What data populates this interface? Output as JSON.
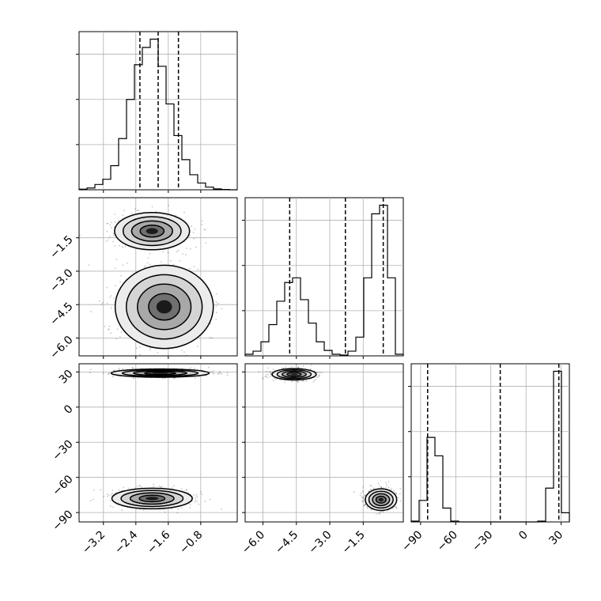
{
  "chart_data": {
    "type": "corner",
    "grid": true,
    "parameters": [
      {
        "index": 0,
        "range": [
          -3.8,
          0.1
        ],
        "ticks": [
          -3.2,
          -2.4,
          -1.6,
          -0.8
        ],
        "tick_labels": [
          "−3.2",
          "−2.4",
          "−1.6",
          "−0.8"
        ],
        "quantiles": [
          -2.3,
          -1.85,
          -1.35
        ],
        "histogram": {
          "edges": [
            -3.8,
            -3.605,
            -3.41,
            -3.215,
            -3.02,
            -2.825,
            -2.63,
            -2.435,
            -2.24,
            -2.045,
            -1.85,
            -1.655,
            -1.46,
            -1.265,
            -1.07,
            -0.875,
            -0.68,
            -0.485,
            -0.29,
            -0.095,
            0.1
          ],
          "counts": [
            0.004,
            0.012,
            0.035,
            0.07,
            0.16,
            0.34,
            0.6,
            0.83,
            0.945,
            1.0,
            0.82,
            0.57,
            0.36,
            0.2,
            0.1,
            0.045,
            0.018,
            0.006,
            0.002,
            0.0
          ]
        }
      },
      {
        "index": 1,
        "range": [
          -6.8,
          0.3
        ],
        "ticks": [
          -6.0,
          -4.5,
          -3.0,
          -1.5
        ],
        "tick_labels": [
          "−6.0",
          "−4.5",
          "−3.0",
          "−1.5"
        ],
        "quantiles": [
          -4.8,
          -2.3,
          -0.6
        ],
        "histogram": {
          "edges": [
            -6.8,
            -6.445,
            -6.09,
            -5.735,
            -5.38,
            -5.025,
            -4.67,
            -4.315,
            -3.96,
            -3.605,
            -3.25,
            -2.895,
            -2.54,
            -2.185,
            -1.83,
            -1.475,
            -1.12,
            -0.765,
            -0.41,
            -0.055,
            0.3
          ],
          "counts": [
            0.01,
            0.03,
            0.09,
            0.2,
            0.35,
            0.47,
            0.5,
            0.36,
            0.21,
            0.09,
            0.035,
            0.01,
            0.005,
            0.03,
            0.12,
            0.5,
            0.91,
            0.965,
            0.5,
            0.01
          ]
        }
      },
      {
        "index": 2,
        "range": [
          -98,
          37
        ],
        "ticks": [
          -90,
          -60,
          -30,
          0,
          30
        ],
        "tick_labels": [
          "−90",
          "−60",
          "−30",
          "0",
          "30"
        ],
        "quantiles": [
          -84,
          -22,
          28
        ],
        "histogram": {
          "edges": [
            -98,
            -91.25,
            -84.5,
            -77.75,
            -71,
            -64.25,
            -57.5,
            -50.75,
            -44,
            -37.25,
            -30.5,
            -23.75,
            -17,
            -10.25,
            -3.5,
            3.25,
            10,
            16.75,
            23.5,
            30.25,
            37
          ],
          "counts": [
            0.005,
            0.14,
            0.55,
            0.43,
            0.09,
            0.005,
            0,
            0,
            0,
            0,
            0,
            0,
            0,
            0,
            0,
            0,
            0.005,
            0.22,
            0.98,
            0.06
          ]
        }
      }
    ],
    "scatter_panels": [
      {
        "x_param": 0,
        "y_param": 1,
        "modes": [
          {
            "x": -2.0,
            "y": -1.2,
            "sx": 0.42,
            "sy": 0.38
          },
          {
            "x": -1.7,
            "y": -4.6,
            "sx": 0.55,
            "sy": 0.85
          }
        ]
      },
      {
        "x_param": 0,
        "y_param": 2,
        "modes": [
          {
            "x": -1.8,
            "y": 29,
            "sx": 0.55,
            "sy": 1.6
          },
          {
            "x": -2.0,
            "y": -78,
            "sx": 0.45,
            "sy": 4.0
          }
        ]
      },
      {
        "x_param": 1,
        "y_param": 2,
        "modes": [
          {
            "x": -4.6,
            "y": 28,
            "sx": 0.45,
            "sy": 2.2
          },
          {
            "x": -0.7,
            "y": -79,
            "sx": 0.32,
            "sy": 4.2
          }
        ]
      }
    ]
  }
}
